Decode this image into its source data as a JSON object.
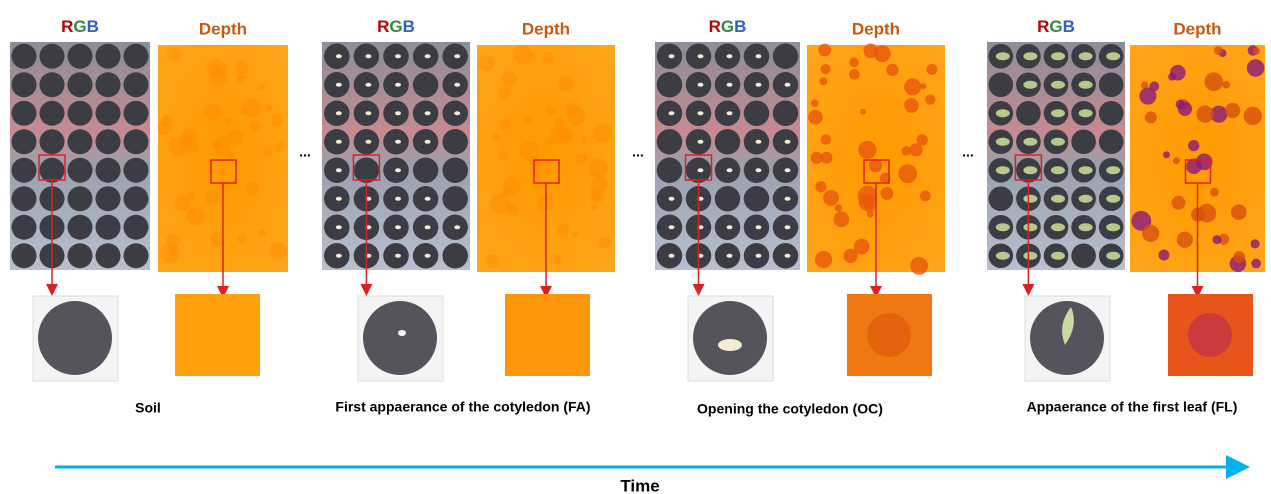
{
  "panels": [
    {
      "rgb": [
        "R",
        "G",
        "B"
      ],
      "depth": "Depth",
      "caption": "Soil"
    },
    {
      "rgb": [
        "R",
        "G",
        "B"
      ],
      "depth": "Depth",
      "caption": "First appaerance of the cotyledon (FA)"
    },
    {
      "rgb": [
        "R",
        "G",
        "B"
      ],
      "depth": "Depth",
      "caption": "Opening the cotyledon (OC)"
    },
    {
      "rgb": [
        "R",
        "G",
        "B"
      ],
      "depth": "Depth",
      "caption": "Appaerance of  the first leaf (FL)"
    }
  ],
  "separators": [
    "...",
    "...",
    "..."
  ],
  "axis_label": "Time"
}
